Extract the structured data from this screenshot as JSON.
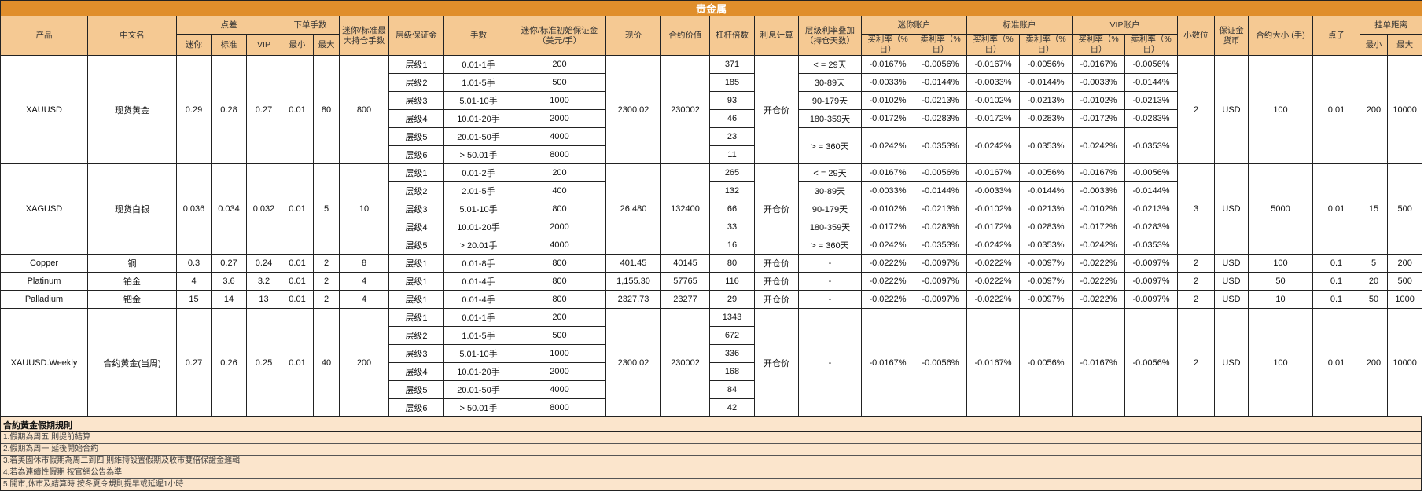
{
  "title": "贵金属",
  "colors": {
    "title_bar": "#E08E2B",
    "header": "#F5C993",
    "notes_bg": "#FBE5CC"
  },
  "headers": {
    "product": "产品",
    "cn_name": "中文名",
    "spread": "点差",
    "spread_mini": "迷你",
    "spread_std": "标准",
    "spread_vip": "VIP",
    "order_lots": "下单手数",
    "min": "最小",
    "max": "最大",
    "max_pos": "迷你/标准最大持仓手数",
    "tier_margin": "层级保证金",
    "lots": "手數",
    "init_margin": "迷你/标准初始保证金（美元/手）",
    "price": "现价",
    "contract_value": "合约价值",
    "leverage": "杠杆倍数",
    "interest": "利息计算",
    "rate_tier": "层级利率叠加（持仓天数）",
    "mini_acct": "迷你账户",
    "std_acct": "标准账户",
    "vip_acct": "VIP账户",
    "buy_rate": "买利率（%日）",
    "sell_rate": "卖利率（%日）",
    "decimals": "小数位",
    "currency": "保证金货币",
    "size": "合约大小 (手)",
    "pip": "点子",
    "pending": "挂单距离"
  },
  "products": [
    {
      "symbol": "XAUUSD",
      "name": "现货黄金",
      "spread": [
        "0.29",
        "0.28",
        "0.27"
      ],
      "lots": [
        "0.01",
        "80"
      ],
      "max_pos": "800",
      "tiers": [
        [
          "层级1",
          "0.01-1手",
          "200",
          "371"
        ],
        [
          "层级2",
          "1.01-5手",
          "500",
          "185"
        ],
        [
          "层级3",
          "5.01-10手",
          "1000",
          "93"
        ],
        [
          "层级4",
          "10.01-20手",
          "2000",
          "46"
        ],
        [
          "层级5",
          "20.01-50手",
          "4000",
          "23"
        ],
        [
          "层级6",
          "> 50.01手",
          "8000",
          "11"
        ]
      ],
      "price": "2300.02",
      "value": "230002",
      "interest": "开仓价",
      "rate_tiers": [
        [
          "< = 29天",
          "-0.0167%",
          "-0.0056%",
          "-0.0167%",
          "-0.0056%",
          "-0.0167%",
          "-0.0056%"
        ],
        [
          "30-89天",
          "-0.0033%",
          "-0.0144%",
          "-0.0033%",
          "-0.0144%",
          "-0.0033%",
          "-0.0144%"
        ],
        [
          "90-179天",
          "-0.0102%",
          "-0.0213%",
          "-0.0102%",
          "-0.0213%",
          "-0.0102%",
          "-0.0213%"
        ],
        [
          "180-359天",
          "-0.0172%",
          "-0.0283%",
          "-0.0172%",
          "-0.0283%",
          "-0.0172%",
          "-0.0283%"
        ],
        [
          "> = 360天",
          "-0.0242%",
          "-0.0353%",
          "-0.0242%",
          "-0.0353%",
          "-0.0242%",
          "-0.0353%"
        ]
      ],
      "decimals": "2",
      "currency": "USD",
      "size": "100",
      "pip": "0.01",
      "pending": [
        "200",
        "10000"
      ]
    },
    {
      "symbol": "XAGUSD",
      "name": "现货白银",
      "spread": [
        "0.036",
        "0.034",
        "0.032"
      ],
      "lots": [
        "0.01",
        "5"
      ],
      "max_pos": "10",
      "tiers": [
        [
          "层级1",
          "0.01-2手",
          "200",
          "265"
        ],
        [
          "层级2",
          "2.01-5手",
          "400",
          "132"
        ],
        [
          "层级3",
          "5.01-10手",
          "800",
          "66"
        ],
        [
          "层级4",
          "10.01-20手",
          "2000",
          "33"
        ],
        [
          "层级5",
          "> 20.01手",
          "4000",
          "16"
        ]
      ],
      "price": "26.480",
      "value": "132400",
      "interest": "开仓价",
      "rate_tiers": [
        [
          "< = 29天",
          "-0.0167%",
          "-0.0056%",
          "-0.0167%",
          "-0.0056%",
          "-0.0167%",
          "-0.0056%"
        ],
        [
          "30-89天",
          "-0.0033%",
          "-0.0144%",
          "-0.0033%",
          "-0.0144%",
          "-0.0033%",
          "-0.0144%"
        ],
        [
          "90-179天",
          "-0.0102%",
          "-0.0213%",
          "-0.0102%",
          "-0.0213%",
          "-0.0102%",
          "-0.0213%"
        ],
        [
          "180-359天",
          "-0.0172%",
          "-0.0283%",
          "-0.0172%",
          "-0.0283%",
          "-0.0172%",
          "-0.0283%"
        ],
        [
          "> = 360天",
          "-0.0242%",
          "-0.0353%",
          "-0.0242%",
          "-0.0353%",
          "-0.0242%",
          "-0.0353%"
        ]
      ],
      "decimals": "3",
      "currency": "USD",
      "size": "5000",
      "pip": "0.01",
      "pending": [
        "15",
        "500"
      ]
    },
    {
      "symbol": "Copper",
      "name": "铜",
      "spread": [
        "0.3",
        "0.27",
        "0.24"
      ],
      "lots": [
        "0.01",
        "2"
      ],
      "max_pos": "8",
      "tiers": [
        [
          "层级1",
          "0.01-8手",
          "800",
          "80"
        ]
      ],
      "price": "401.45",
      "value": "40145",
      "interest": "开仓价",
      "rate_tiers": [
        [
          "-",
          "-0.0222%",
          "-0.0097%",
          "-0.0222%",
          "-0.0097%",
          "-0.0222%",
          "-0.0097%"
        ]
      ],
      "decimals": "2",
      "currency": "USD",
      "size": "100",
      "pip": "0.1",
      "pending": [
        "5",
        "200"
      ]
    },
    {
      "symbol": "Platinum",
      "name": "铂金",
      "spread": [
        "4",
        "3.6",
        "3.2"
      ],
      "lots": [
        "0.01",
        "2"
      ],
      "max_pos": "4",
      "tiers": [
        [
          "层级1",
          "0.01-4手",
          "800",
          "116"
        ]
      ],
      "price": "1,155.30",
      "value": "57765",
      "interest": "开仓价",
      "rate_tiers": [
        [
          "-",
          "-0.0222%",
          "-0.0097%",
          "-0.0222%",
          "-0.0097%",
          "-0.0222%",
          "-0.0097%"
        ]
      ],
      "decimals": "2",
      "currency": "USD",
      "size": "50",
      "pip": "0.1",
      "pending": [
        "20",
        "500"
      ]
    },
    {
      "symbol": "Palladium",
      "name": "钯金",
      "spread": [
        "15",
        "14",
        "13"
      ],
      "lots": [
        "0.01",
        "2"
      ],
      "max_pos": "4",
      "tiers": [
        [
          "层级1",
          "0.01-4手",
          "800",
          "29"
        ]
      ],
      "price": "2327.73",
      "value": "23277",
      "interest": "开仓价",
      "rate_tiers": [
        [
          "-",
          "-0.0222%",
          "-0.0097%",
          "-0.0222%",
          "-0.0097%",
          "-0.0222%",
          "-0.0097%"
        ]
      ],
      "decimals": "2",
      "currency": "USD",
      "size": "10",
      "pip": "0.1",
      "pending": [
        "50",
        "1000"
      ]
    },
    {
      "symbol": "XAUUSD.Weekly",
      "name": "合约黄金(当周)",
      "spread": [
        "0.27",
        "0.26",
        "0.25"
      ],
      "lots": [
        "0.01",
        "40"
      ],
      "max_pos": "200",
      "tiers": [
        [
          "层级1",
          "0.01-1手",
          "200",
          "1343"
        ],
        [
          "层级2",
          "1.01-5手",
          "500",
          "672"
        ],
        [
          "层级3",
          "5.01-10手",
          "1000",
          "336"
        ],
        [
          "层级4",
          "10.01-20手",
          "2000",
          "168"
        ],
        [
          "层级5",
          "20.01-50手",
          "4000",
          "84"
        ],
        [
          "层级6",
          "> 50.01手",
          "8000",
          "42"
        ]
      ],
      "price": "2300.02",
      "value": "230002",
      "interest": "开仓价",
      "rate_tiers": [
        [
          "-",
          "-0.0167%",
          "-0.0056%",
          "-0.0167%",
          "-0.0056%",
          "-0.0167%",
          "-0.0056%"
        ]
      ],
      "decimals": "2",
      "currency": "USD",
      "size": "100",
      "pip": "0.01",
      "pending": [
        "200",
        "10000"
      ]
    }
  ],
  "notes": {
    "title": "合約黃金假期規則",
    "items": [
      "1.假期為周五 則提前結算",
      "2.假期為周一 延後開始合約",
      "3.若美國休市假期為周二到四 則維持設置假期及收市雙倍保證金邏輯",
      "4.若為連續性假期 按官網公告為準",
      "5.開市,休市及結算時 按冬夏令規則提早或延遲1小時"
    ]
  }
}
